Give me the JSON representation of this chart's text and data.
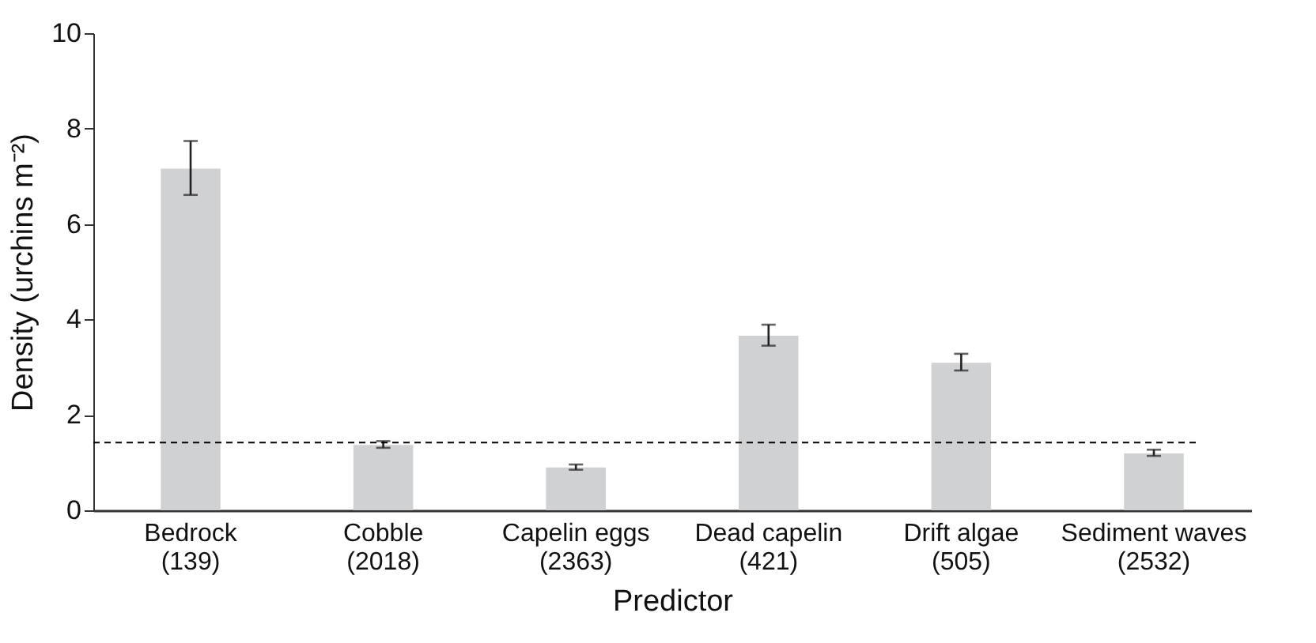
{
  "chart_data": {
    "type": "bar",
    "xlabel": "Predictor",
    "ylabel": "Density (urchins m⁻²)",
    "categories": [
      "Bedrock\n(139)",
      "Cobble\n(2018)",
      "Capelin eggs\n(2363)",
      "Dead capelin\n(421)",
      "Drift algae\n(505)",
      "Sediment waves\n(2532)"
    ],
    "values": [
      7.16,
      1.37,
      0.9,
      3.66,
      3.09,
      1.19
    ],
    "errors": [
      [
        6.61,
        7.74
      ],
      [
        1.31,
        1.45
      ],
      [
        0.85,
        0.96
      ],
      [
        3.45,
        3.89
      ],
      [
        2.93,
        3.28
      ],
      [
        1.14,
        1.27
      ]
    ],
    "color": "#d0d1d3",
    "ylim": [
      0,
      10
    ],
    "yticks": [
      0,
      2,
      4,
      6,
      8,
      10
    ],
    "ref_lines": [
      {
        "axis": "y",
        "value": 1.42,
        "line_style": "dashed",
        "color": "#000000"
      }
    ],
    "grid": false
  }
}
